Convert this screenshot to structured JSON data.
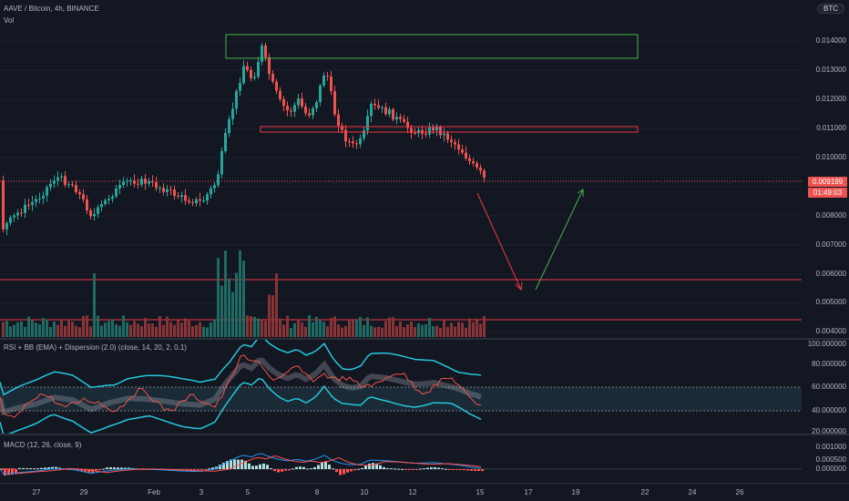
{
  "header": {
    "symbol_title": "AAVE / Bitcoin, 4h, BINANCE",
    "volume_label": "Vol",
    "currency_badge": "BTC"
  },
  "price_axis": {
    "ticks": [
      "0.014000",
      "0.013000",
      "0.012000",
      "0.011000",
      "0.010000",
      "0.009199",
      "0.008000",
      "0.007000",
      "0.006000",
      "0.005000",
      "0.004000"
    ],
    "last_price": "0.009199",
    "countdown": "01:49:03"
  },
  "rsi_panel": {
    "title": "RSI + BB (EMA) + Dispersion (2.0) (close, 14, 20, 2, 0.1)",
    "ticks": [
      "100.000000",
      "80.000000",
      "60.000000",
      "40.000000",
      "20.000000"
    ]
  },
  "macd_panel": {
    "title": "MACD (12, 26, close, 9)",
    "ticks": [
      "0.001000",
      "0.000500",
      "0.000000"
    ]
  },
  "time_axis": {
    "labels": [
      "27",
      "29",
      "Feb",
      "3",
      "5",
      "8",
      "10",
      "12",
      "15",
      "17",
      "19",
      "22",
      "24",
      "26"
    ]
  },
  "colors": {
    "background": "#131722",
    "up": "#26a69a",
    "down": "#ef5350",
    "resistance_box": "#4caf50",
    "support_box": "#f23645",
    "forecast_down": "#f23645",
    "forecast_up": "#4caf50",
    "rsi_line": "#ef5350",
    "bb_band": "#26c6da",
    "macd_line": "#2196f3",
    "signal_line": "#ff5252"
  }
}
